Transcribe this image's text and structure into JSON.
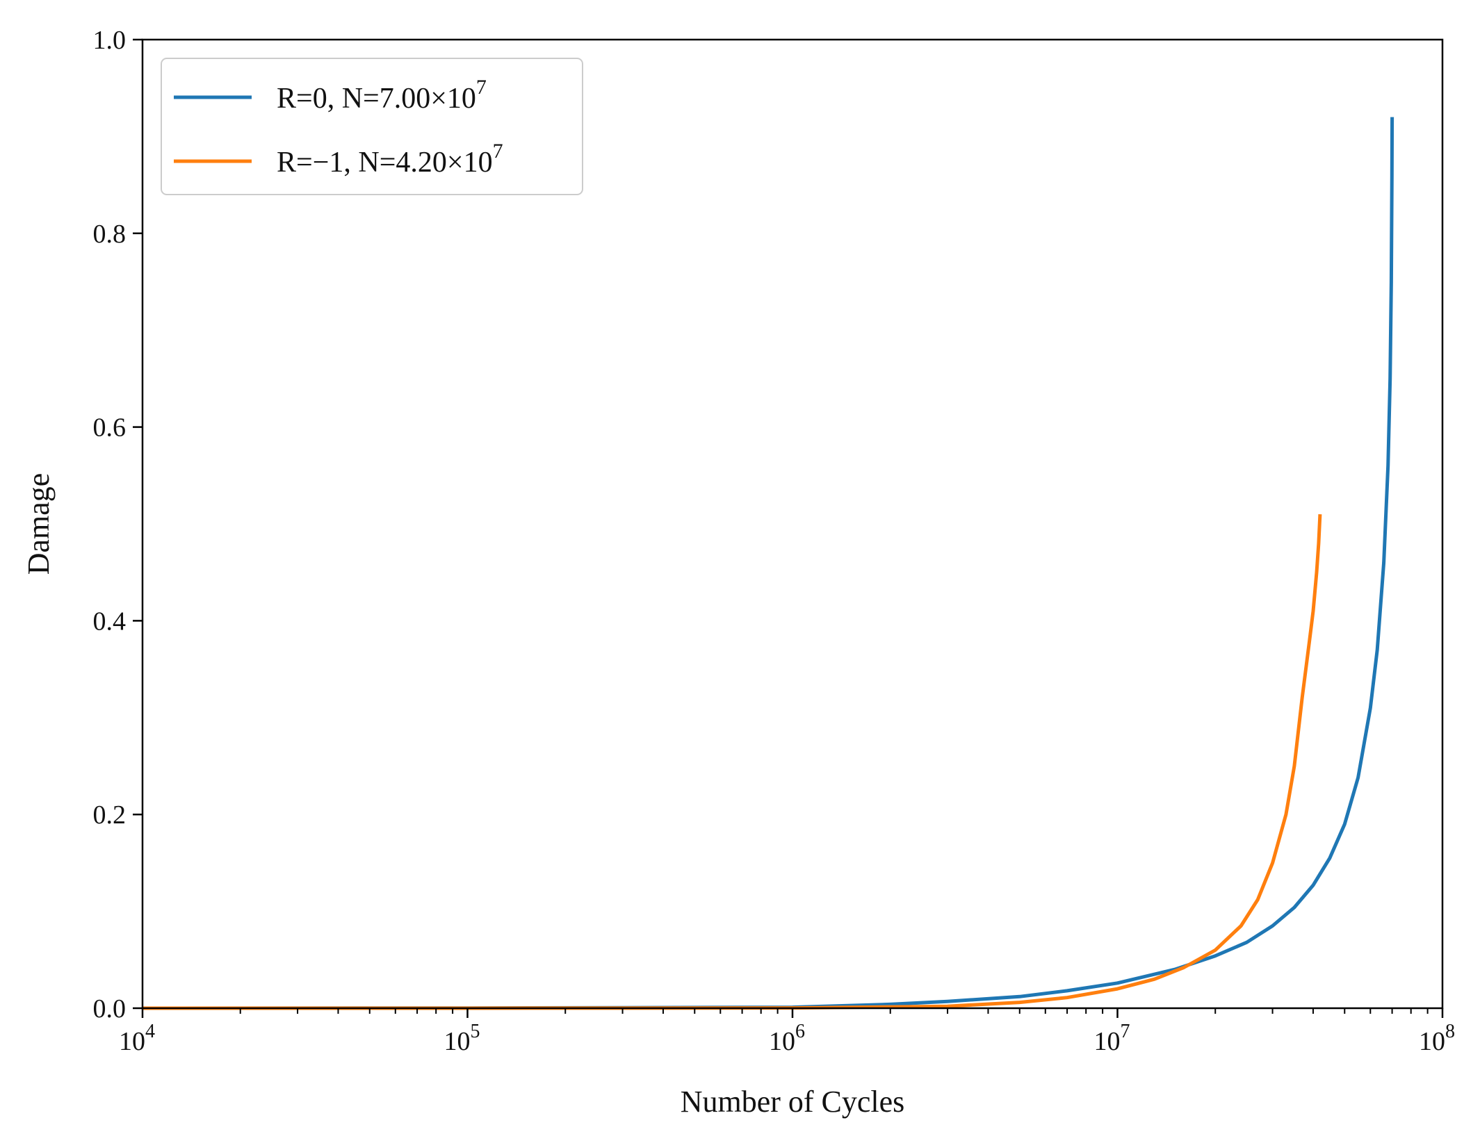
{
  "chart_data": {
    "type": "line",
    "title": "",
    "xlabel": "Number of Cycles",
    "ylabel": "Damage",
    "xscale": "log",
    "xlim": [
      10000,
      100000000
    ],
    "ylim": [
      0.0,
      1.0
    ],
    "grid": false,
    "legend_position": "top-left",
    "x_major_ticks": [
      {
        "value": 10000,
        "base": "10",
        "exp": "4"
      },
      {
        "value": 100000,
        "base": "10",
        "exp": "5"
      },
      {
        "value": 1000000,
        "base": "10",
        "exp": "6"
      },
      {
        "value": 10000000,
        "base": "10",
        "exp": "7"
      },
      {
        "value": 100000000,
        "base": "10",
        "exp": "8"
      }
    ],
    "y_ticks": [
      {
        "value": 0.0,
        "label": "0.0"
      },
      {
        "value": 0.2,
        "label": "0.2"
      },
      {
        "value": 0.4,
        "label": "0.4"
      },
      {
        "value": 0.6,
        "label": "0.6"
      },
      {
        "value": 0.8,
        "label": "0.8"
      },
      {
        "value": 1.0,
        "label": "1.0"
      }
    ],
    "series": [
      {
        "name": "R=0, N=7.00×10^7",
        "legend_text": "R=0, N=7.00×10",
        "legend_exp": "7",
        "color": "#1f77b4",
        "life_cycles": 70000000,
        "x": [
          10000,
          100000,
          1000000,
          2000000,
          3000000,
          5000000,
          7000000,
          10000000,
          15000000,
          20000000,
          25000000,
          30000000,
          35000000,
          40000000,
          45000000,
          50000000,
          55000000,
          60000000,
          63000000,
          66000000,
          68000000,
          69000000,
          69600000,
          69900000,
          70000000
        ],
        "y": [
          0.0,
          0.0002,
          0.001,
          0.004,
          0.007,
          0.012,
          0.018,
          0.026,
          0.04,
          0.054,
          0.068,
          0.085,
          0.104,
          0.127,
          0.155,
          0.19,
          0.238,
          0.31,
          0.37,
          0.46,
          0.56,
          0.65,
          0.75,
          0.86,
          0.92
        ]
      },
      {
        "name": "R=−1, N=4.20×10^7",
        "legend_text": "R=−1, N=4.20×10",
        "legend_exp": "7",
        "color": "#ff7f0e",
        "life_cycles": 42000000,
        "x": [
          10000,
          100000,
          1000000,
          3000000,
          5000000,
          7000000,
          10000000,
          13000000,
          16000000,
          20000000,
          24000000,
          27000000,
          30000000,
          33000000,
          35000000,
          37000000,
          39000000,
          40000000,
          41000000,
          41600000,
          42000000
        ],
        "y": [
          0.0,
          0.0,
          0.0003,
          0.002,
          0.006,
          0.011,
          0.02,
          0.03,
          0.042,
          0.06,
          0.085,
          0.112,
          0.15,
          0.2,
          0.25,
          0.32,
          0.38,
          0.41,
          0.45,
          0.48,
          0.51
        ]
      }
    ]
  }
}
